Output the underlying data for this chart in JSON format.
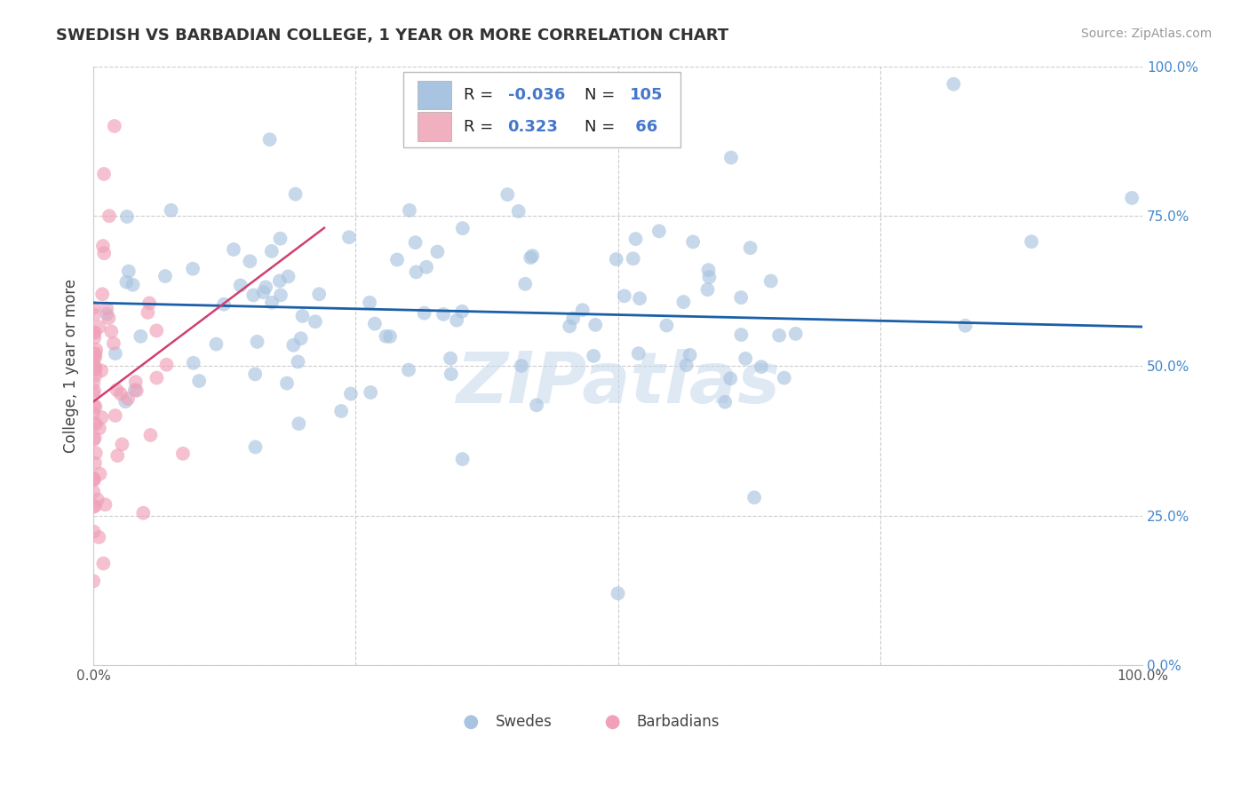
{
  "title": "SWEDISH VS BARBADIAN COLLEGE, 1 YEAR OR MORE CORRELATION CHART",
  "source": "Source: ZipAtlas.com",
  "ylabel": "College, 1 year or more",
  "blue_R": -0.036,
  "blue_N": 105,
  "pink_R": 0.323,
  "pink_N": 66,
  "blue_color": "#a8c4e0",
  "pink_color": "#f0a0b8",
  "blue_line_color": "#1a5fa8",
  "pink_line_color": "#d04070",
  "blue_legend_color": "#a8c4e0",
  "pink_legend_color": "#f0b0c0",
  "watermark": "ZIPatlas",
  "grid_color": "#cccccc",
  "right_tick_color": "#4488cc",
  "xlim": [
    0.0,
    1.0
  ],
  "ylim": [
    0.0,
    1.0
  ],
  "blue_line_x": [
    0.0,
    1.0
  ],
  "blue_line_y": [
    0.605,
    0.565
  ],
  "pink_line_x": [
    0.0,
    0.22
  ],
  "pink_line_y": [
    0.44,
    0.73
  ]
}
